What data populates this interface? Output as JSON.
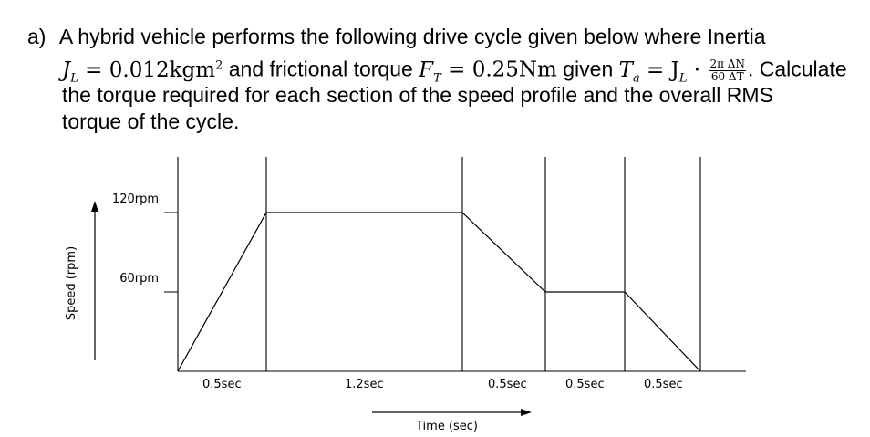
{
  "question": {
    "marker": "a)",
    "line1": "A hybrid vehicle performs the following drive cycle given below where Inertia",
    "line2_a": "J",
    "line2_a_sub": "L",
    "line2_b": " = 0.012kgm",
    "line2_b_sup": "2",
    "line2_c": " and frictional torque ",
    "line2_d": "F",
    "line2_d_sub": "T",
    "line2_e": " = 0.25Nm",
    "line2_f": " given ",
    "line2_g": "T",
    "line2_g_sub": "a",
    "line2_h": " = J",
    "line2_h_sub": "L",
    "line2_i": " · ",
    "frac_num": "2π ΔN",
    "frac_den": "60 ΔT",
    "line2_j": ". Calculate",
    "line3": "the torque required for each section of the speed profile and the overall RMS",
    "line4": "torque of the cycle."
  },
  "chart_data": {
    "type": "line",
    "title": "",
    "xlabel": "Time (sec)",
    "ylabel": "Speed (rpm)",
    "y_ticks": [
      {
        "value": 120,
        "label": "120rpm"
      },
      {
        "value": 60,
        "label": "60rpm"
      }
    ],
    "segments": [
      {
        "duration_label": "0.5sec",
        "duration": 0.5,
        "start_rpm": 0,
        "end_rpm": 120
      },
      {
        "duration_label": "1.2sec",
        "duration": 1.2,
        "start_rpm": 120,
        "end_rpm": 120
      },
      {
        "duration_label": "0.5sec",
        "duration": 0.5,
        "start_rpm": 120,
        "end_rpm": 60
      },
      {
        "duration_label": "0.5sec",
        "duration": 0.5,
        "start_rpm": 60,
        "end_rpm": 60
      },
      {
        "duration_label": "0.5sec",
        "duration": 0.5,
        "start_rpm": 60,
        "end_rpm": 0
      }
    ]
  }
}
